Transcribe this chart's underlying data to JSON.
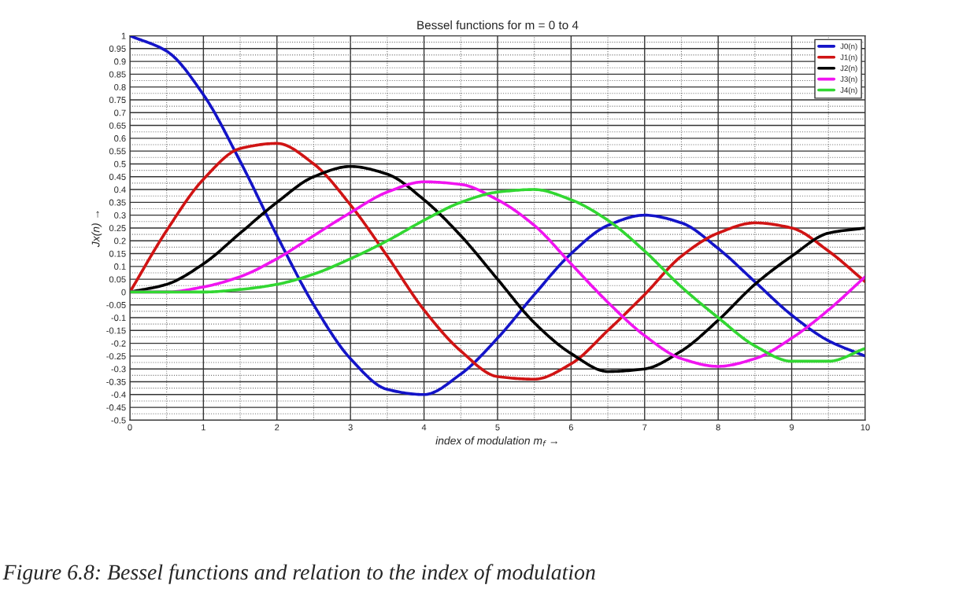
{
  "chart_data": {
    "type": "line",
    "title": "Bessel functions for m = 0 to 4",
    "xlabel": "index of modulation m$_{f}$ →",
    "ylabel": "Jx(n) →",
    "x": [
      0,
      0.5,
      1,
      1.5,
      2,
      2.5,
      3,
      3.5,
      4,
      4.5,
      5,
      5.5,
      6,
      6.5,
      7,
      7.5,
      8,
      8.5,
      9,
      9.5,
      10
    ],
    "series": [
      {
        "name": "J0(n)",
        "color": "#1414c8",
        "values": [
          1,
          0.94,
          0.77,
          0.51,
          0.22,
          -0.05,
          -0.26,
          -0.38,
          -0.4,
          -0.32,
          -0.18,
          -0.01,
          0.15,
          0.26,
          0.3,
          0.27,
          0.17,
          0.04,
          -0.09,
          -0.19,
          -0.25
        ]
      },
      {
        "name": "J1(n)",
        "color": "#d01414",
        "values": [
          0,
          0.24,
          0.44,
          0.56,
          0.58,
          0.5,
          0.34,
          0.14,
          -0.07,
          -0.23,
          -0.33,
          -0.34,
          -0.28,
          -0.15,
          -0.01,
          0.14,
          0.23,
          0.27,
          0.25,
          0.16,
          0.04
        ]
      },
      {
        "name": "J2(n)",
        "color": "#000000",
        "values": [
          0,
          0.03,
          0.11,
          0.23,
          0.35,
          0.45,
          0.49,
          0.46,
          0.36,
          0.22,
          0.05,
          -0.12,
          -0.24,
          -0.31,
          -0.3,
          -0.23,
          -0.11,
          0.03,
          0.14,
          0.23,
          0.25
        ]
      },
      {
        "name": "J3(n)",
        "color": "#f014f0",
        "values": [
          0,
          0.0,
          0.02,
          0.06,
          0.13,
          0.22,
          0.31,
          0.39,
          0.43,
          0.42,
          0.36,
          0.26,
          0.11,
          -0.04,
          -0.17,
          -0.26,
          -0.29,
          -0.26,
          -0.18,
          -0.07,
          0.06
        ]
      },
      {
        "name": "J4(n)",
        "color": "#32d732",
        "values": [
          0,
          0.0,
          0.0,
          0.01,
          0.03,
          0.07,
          0.13,
          0.2,
          0.28,
          0.35,
          0.39,
          0.4,
          0.36,
          0.28,
          0.16,
          0.02,
          -0.1,
          -0.21,
          -0.27,
          -0.27,
          -0.22
        ]
      }
    ],
    "xlim": [
      0,
      10
    ],
    "ylim": [
      -0.5,
      1
    ],
    "xticks": [
      0,
      1,
      2,
      3,
      4,
      5,
      6,
      7,
      8,
      9,
      10
    ],
    "yticks": [
      -0.5,
      -0.45,
      -0.4,
      -0.35,
      -0.3,
      -0.25,
      -0.2,
      -0.15,
      -0.1,
      -0.05,
      0,
      0.05,
      0.1,
      0.15,
      0.2,
      0.25,
      0.3,
      0.35,
      0.4,
      0.45,
      0.5,
      0.55,
      0.6,
      0.65,
      0.7,
      0.75,
      0.8,
      0.85,
      0.9,
      0.95,
      1
    ],
    "grid": true,
    "legend": "top right",
    "marker": "none",
    "line_style": "solid",
    "annotations": [
      "Figure 6.8: Bessel functions and relation to the index of modulation"
    ]
  }
}
